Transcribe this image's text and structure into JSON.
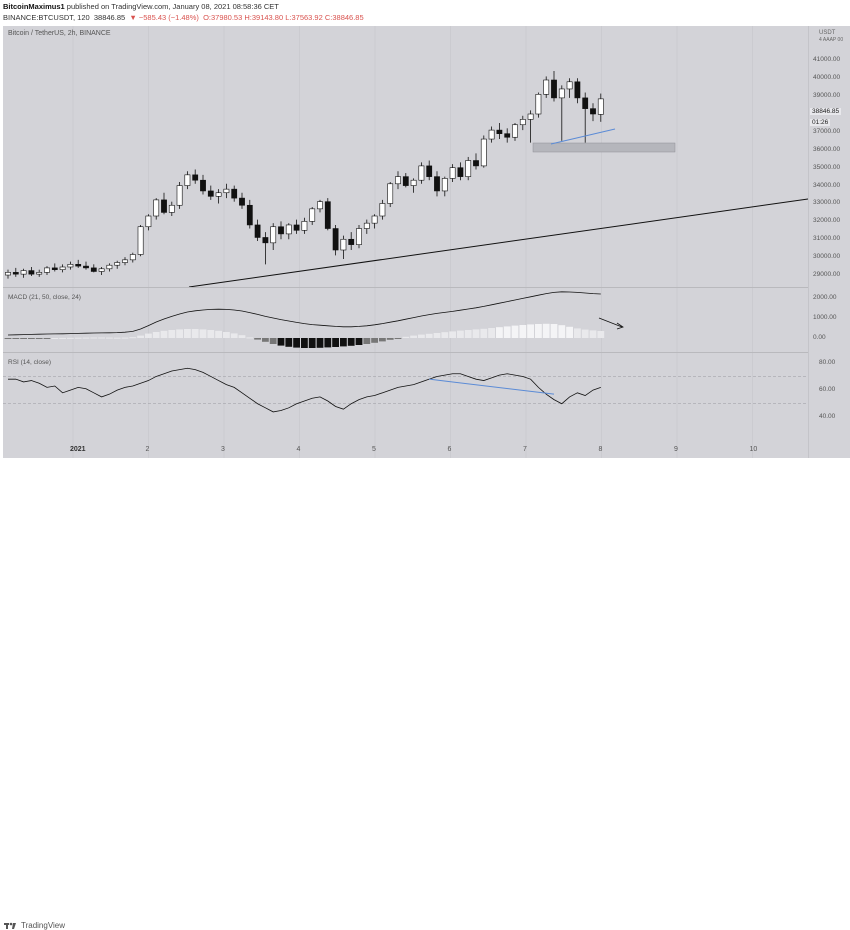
{
  "header": {
    "author": "BitcoinMaximus1",
    "published_text": "published on TradingView.com, January 08, 2021 08:58:36 CET",
    "symbol": "BINANCE:BTCUSDT, 120",
    "price": "38846.85",
    "change": "▼ −585.43 (−1.48%)",
    "ohlc": "O:37980.53 H:39143.80 L:37563.92 C:38846.85"
  },
  "chart_title": "Bitcoin / TetherUS, 2h, BINANCE",
  "macd_label": "MACD (21, 50, close, 24)",
  "rsi_label": "RSI (14, close)",
  "axis_currency": "USDT",
  "axis_currency_sub": "4 AAAP 00",
  "price_ticks": [
    "41000.00",
    "40000.00",
    "39000.00",
    "38000.00",
    "37000.00",
    "36000.00",
    "35000.00",
    "34000.00",
    "33000.00",
    "32000.00",
    "31000.00",
    "30000.00",
    "29000.00"
  ],
  "macd_ticks": [
    "2000.00",
    "1000.00",
    "0.00"
  ],
  "rsi_ticks": [
    "80.00",
    "60.00",
    "40.00"
  ],
  "price_badge": "38846.85",
  "time_badge": "01:26",
  "x_ticks": [
    "2021",
    "2",
    "3",
    "4",
    "5",
    "6",
    "7",
    "8",
    "9",
    "10"
  ],
  "footer_brand": "TradingView",
  "colors": {
    "up": "#ffffff",
    "down": "#111111",
    "trend": "#111111",
    "diverge": "#5b8bd6",
    "zone": "#b5b6bc",
    "background": "#d3d3d8"
  },
  "chart_data": [
    {
      "type": "candlestick",
      "title": "Bitcoin / TetherUS, 2h, BINANCE",
      "x_categories": [
        "2021",
        "2",
        "3",
        "4",
        "5",
        "6",
        "7",
        "8",
        "9",
        "10"
      ],
      "ylim": [
        28500,
        41800
      ],
      "ohlc": [
        [
          29000,
          29300,
          28800,
          29150
        ],
        [
          29150,
          29400,
          28900,
          29050
        ],
        [
          29050,
          29350,
          28850,
          29250
        ],
        [
          29250,
          29450,
          28950,
          29050
        ],
        [
          29050,
          29300,
          28900,
          29150
        ],
        [
          29150,
          29500,
          29000,
          29400
        ],
        [
          29400,
          29650,
          29200,
          29300
        ],
        [
          29300,
          29600,
          29150,
          29450
        ],
        [
          29450,
          29750,
          29300,
          29600
        ],
        [
          29600,
          29850,
          29400,
          29500
        ],
        [
          29500,
          29750,
          29300,
          29400
        ],
        [
          29400,
          29600,
          29150,
          29200
        ],
        [
          29200,
          29450,
          29000,
          29350
        ],
        [
          29350,
          29650,
          29200,
          29550
        ],
        [
          29550,
          29800,
          29350,
          29700
        ],
        [
          29700,
          30000,
          29550,
          29850
        ],
        [
          29850,
          30250,
          29700,
          30150
        ],
        [
          30150,
          31800,
          30050,
          31700
        ],
        [
          31700,
          32400,
          31500,
          32300
        ],
        [
          32300,
          33300,
          32100,
          33200
        ],
        [
          33200,
          33600,
          32400,
          32500
        ],
        [
          32500,
          33100,
          32300,
          32900
        ],
        [
          32900,
          34200,
          32700,
          34000
        ],
        [
          34000,
          34800,
          33800,
          34600
        ],
        [
          34600,
          34900,
          34100,
          34300
        ],
        [
          34300,
          34600,
          33500,
          33700
        ],
        [
          33700,
          34000,
          33200,
          33400
        ],
        [
          33400,
          33800,
          33000,
          33600
        ],
        [
          33600,
          34100,
          33300,
          33800
        ],
        [
          33800,
          34000,
          33100,
          33300
        ],
        [
          33300,
          33600,
          32700,
          32900
        ],
        [
          32900,
          33200,
          31600,
          31800
        ],
        [
          31800,
          32100,
          30900,
          31100
        ],
        [
          31100,
          31400,
          29600,
          30800
        ],
        [
          30800,
          31900,
          30400,
          31700
        ],
        [
          31700,
          32000,
          31000,
          31300
        ],
        [
          31300,
          31900,
          31000,
          31800
        ],
        [
          31800,
          32100,
          31300,
          31500
        ],
        [
          31500,
          32200,
          31300,
          32000
        ],
        [
          32000,
          32800,
          31800,
          32700
        ],
        [
          32700,
          33200,
          32500,
          33100
        ],
        [
          33100,
          33300,
          31500,
          31600
        ],
        [
          31600,
          31800,
          30100,
          30400
        ],
        [
          30400,
          31200,
          29900,
          31000
        ],
        [
          31000,
          31400,
          30400,
          30700
        ],
        [
          30700,
          31800,
          30500,
          31600
        ],
        [
          31600,
          32100,
          31300,
          31900
        ],
        [
          31900,
          32400,
          31600,
          32300
        ],
        [
          32300,
          33200,
          32100,
          33000
        ],
        [
          33000,
          34200,
          32800,
          34100
        ],
        [
          34100,
          34800,
          33800,
          34500
        ],
        [
          34500,
          34700,
          33900,
          34000
        ],
        [
          34000,
          34400,
          33600,
          34300
        ],
        [
          34300,
          35300,
          34100,
          35100
        ],
        [
          35100,
          35400,
          34300,
          34500
        ],
        [
          34500,
          34800,
          33400,
          33700
        ],
        [
          33700,
          34500,
          33400,
          34400
        ],
        [
          34400,
          35200,
          34200,
          35000
        ],
        [
          35000,
          35300,
          34300,
          34500
        ],
        [
          34500,
          35600,
          34300,
          35400
        ],
        [
          35400,
          35800,
          34900,
          35100
        ],
        [
          35100,
          36800,
          35000,
          36600
        ],
        [
          36600,
          37300,
          36400,
          37100
        ],
        [
          37100,
          37500,
          36600,
          36900
        ],
        [
          36900,
          37200,
          36400,
          36700
        ],
        [
          36700,
          37500,
          36500,
          37400
        ],
        [
          37400,
          37900,
          37100,
          37700
        ],
        [
          37700,
          38200,
          36400,
          38000
        ],
        [
          38000,
          39200,
          37800,
          39100
        ],
        [
          39100,
          40100,
          38900,
          39900
        ],
        [
          39900,
          40400,
          38700,
          38900
        ],
        [
          38900,
          39600,
          36500,
          39400
        ],
        [
          39400,
          40000,
          38900,
          39800
        ],
        [
          39800,
          40000,
          38600,
          38900
        ],
        [
          38900,
          39200,
          36400,
          38300
        ],
        [
          38300,
          38600,
          37600,
          38000
        ],
        [
          37980,
          39143,
          37563,
          38846
        ]
      ]
    },
    {
      "type": "bar",
      "title": "MACD (21, 50, close, 24)",
      "ylim": [
        -500,
        2400
      ],
      "line": [
        150,
        160,
        170,
        180,
        190,
        200,
        205,
        210,
        220,
        230,
        240,
        250,
        255,
        260,
        270,
        290,
        330,
        450,
        620,
        800,
        950,
        1080,
        1200,
        1300,
        1360,
        1400,
        1430,
        1440,
        1430,
        1400,
        1350,
        1270,
        1180,
        1080,
        1000,
        920,
        850,
        780,
        720,
        670,
        640,
        610,
        580,
        560,
        560,
        580,
        610,
        660,
        720,
        790,
        860,
        940,
        1020,
        1100,
        1170,
        1230,
        1280,
        1330,
        1390,
        1450,
        1510,
        1580,
        1660,
        1740,
        1820,
        1900,
        1980,
        2060,
        2140,
        2220,
        2280,
        2310,
        2300,
        2280,
        2250,
        2220,
        2200
      ],
      "histogram": [
        -30,
        -25,
        -20,
        -15,
        -10,
        -5,
        0,
        5,
        10,
        15,
        20,
        25,
        25,
        20,
        15,
        20,
        40,
        120,
        220,
        300,
        360,
        400,
        430,
        450,
        450,
        430,
        400,
        360,
        300,
        230,
        140,
        30,
        -80,
        -190,
        -300,
        -380,
        -440,
        -480,
        -500,
        -500,
        -490,
        -470,
        -450,
        -420,
        -390,
        -350,
        -300,
        -240,
        -170,
        -90,
        -10,
        60,
        120,
        170,
        210,
        250,
        290,
        330,
        370,
        400,
        430,
        460,
        500,
        540,
        580,
        620,
        650,
        680,
        700,
        710,
        700,
        640,
        560,
        480,
        420,
        380,
        350
      ]
    },
    {
      "type": "line",
      "title": "RSI (14, close)",
      "ylim": [
        30,
        85
      ],
      "values": [
        68,
        68,
        66,
        67,
        65,
        62,
        63,
        58,
        60,
        62,
        61,
        58,
        55,
        57,
        60,
        62,
        63,
        65,
        67,
        70,
        72,
        74,
        75,
        76,
        75,
        73,
        70,
        67,
        64,
        62,
        58,
        54,
        50,
        47,
        44,
        45,
        47,
        50,
        52,
        54,
        55,
        52,
        48,
        46,
        50,
        53,
        55,
        56,
        58,
        60,
        62,
        63,
        64,
        66,
        68,
        70,
        71,
        72,
        72,
        70,
        68,
        67,
        69,
        71,
        72,
        71,
        70,
        68,
        62,
        57,
        53,
        50,
        55,
        58,
        56,
        60,
        62
      ],
      "divergence": [
        [
          54,
          68
        ],
        [
          70,
          57
        ]
      ]
    }
  ]
}
